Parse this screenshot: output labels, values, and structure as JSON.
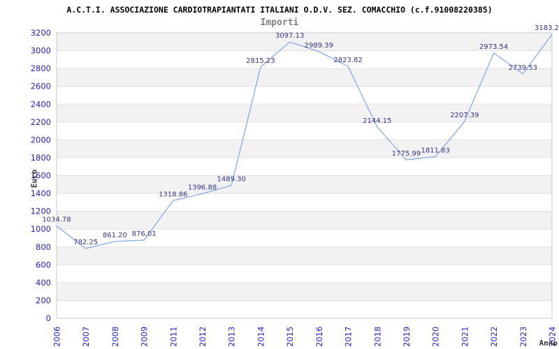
{
  "header": {
    "title": "A.C.T.I. ASSOCIAZIONE CARDIOTRAPIANTATI ITALIANI O.D.V. SEZ. COMACCHIO (c.f.91008220385)",
    "subtitle": "Importi"
  },
  "chart_data": {
    "type": "line",
    "title": "A.C.T.I. ASSOCIAZIONE CARDIOTRAPIANTATI ITALIANI O.D.V. SEZ. COMACCHIO (c.f.91008220385)",
    "subtitle": "Importi",
    "xlabel": "Anno",
    "ylabel": "Euro",
    "categories": [
      "2006",
      "2007",
      "2008",
      "2009",
      "2011",
      "2012",
      "2013",
      "2014",
      "2015",
      "2016",
      "2017",
      "2018",
      "2019",
      "2020",
      "2021",
      "2022",
      "2023",
      "2024"
    ],
    "values": [
      1034.78,
      782.25,
      861.2,
      876.01,
      1318.86,
      1396.88,
      1489.3,
      2815.23,
      3097.13,
      2989.39,
      2823.82,
      2144.15,
      1775.99,
      1811.83,
      2207.39,
      2973.54,
      2739.53,
      3183.2
    ],
    "point_labels": [
      "1034.78",
      "782.25",
      "861.20",
      "876.01",
      "1318.86",
      "1396.88",
      "1489.30",
      "2815.23",
      "3097.13",
      "2989.39",
      "2823.82",
      "2144.15",
      "1775.99",
      "1811.83",
      "2207.39",
      "2973.54",
      "2739.53",
      "3183.2"
    ],
    "ylim": [
      0,
      3200
    ],
    "ytick_step": 200,
    "grid": "alternating-horizontal-bands",
    "legend": "none",
    "colors": {
      "line": "#85abe8",
      "tick_labels": "#2222cc",
      "point_labels": "#333388",
      "band_gray": "#f2f2f2",
      "grid_line": "#e0e0e0",
      "plot_border": "#c8c8c8",
      "title": "#000000",
      "subtitle": "#808080",
      "axis_titles": "#333333"
    }
  }
}
